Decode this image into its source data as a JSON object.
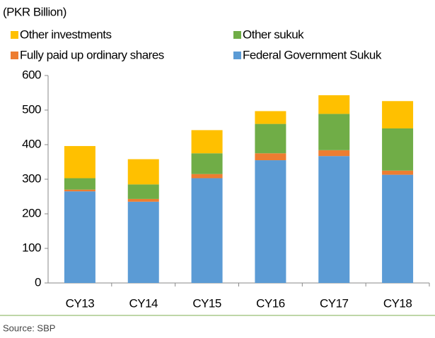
{
  "chart_data": {
    "type": "stacked_bar",
    "subtitle": "(PKR Billion)",
    "source": "Source: SBP",
    "categories": [
      "CY13",
      "CY14",
      "CY15",
      "CY16",
      "CY17",
      "CY18"
    ],
    "series": [
      {
        "name": "Federal Government Sukuk",
        "color": "#5b9bd5",
        "values": [
          265,
          235,
          303,
          355,
          367,
          313
        ]
      },
      {
        "name": "Fully paid up ordinary shares",
        "color": "#ed7d31",
        "values": [
          5,
          8,
          12,
          20,
          17,
          12
        ]
      },
      {
        "name": "Other sukuk",
        "color": "#70ad47",
        "values": [
          33,
          42,
          60,
          85,
          105,
          122
        ]
      },
      {
        "name": "Other investments",
        "color": "#ffc000",
        "values": [
          93,
          73,
          67,
          37,
          54,
          79
        ]
      }
    ],
    "ylim": [
      0,
      600
    ],
    "yticks": [
      0,
      100,
      200,
      300,
      400,
      500,
      600
    ]
  }
}
